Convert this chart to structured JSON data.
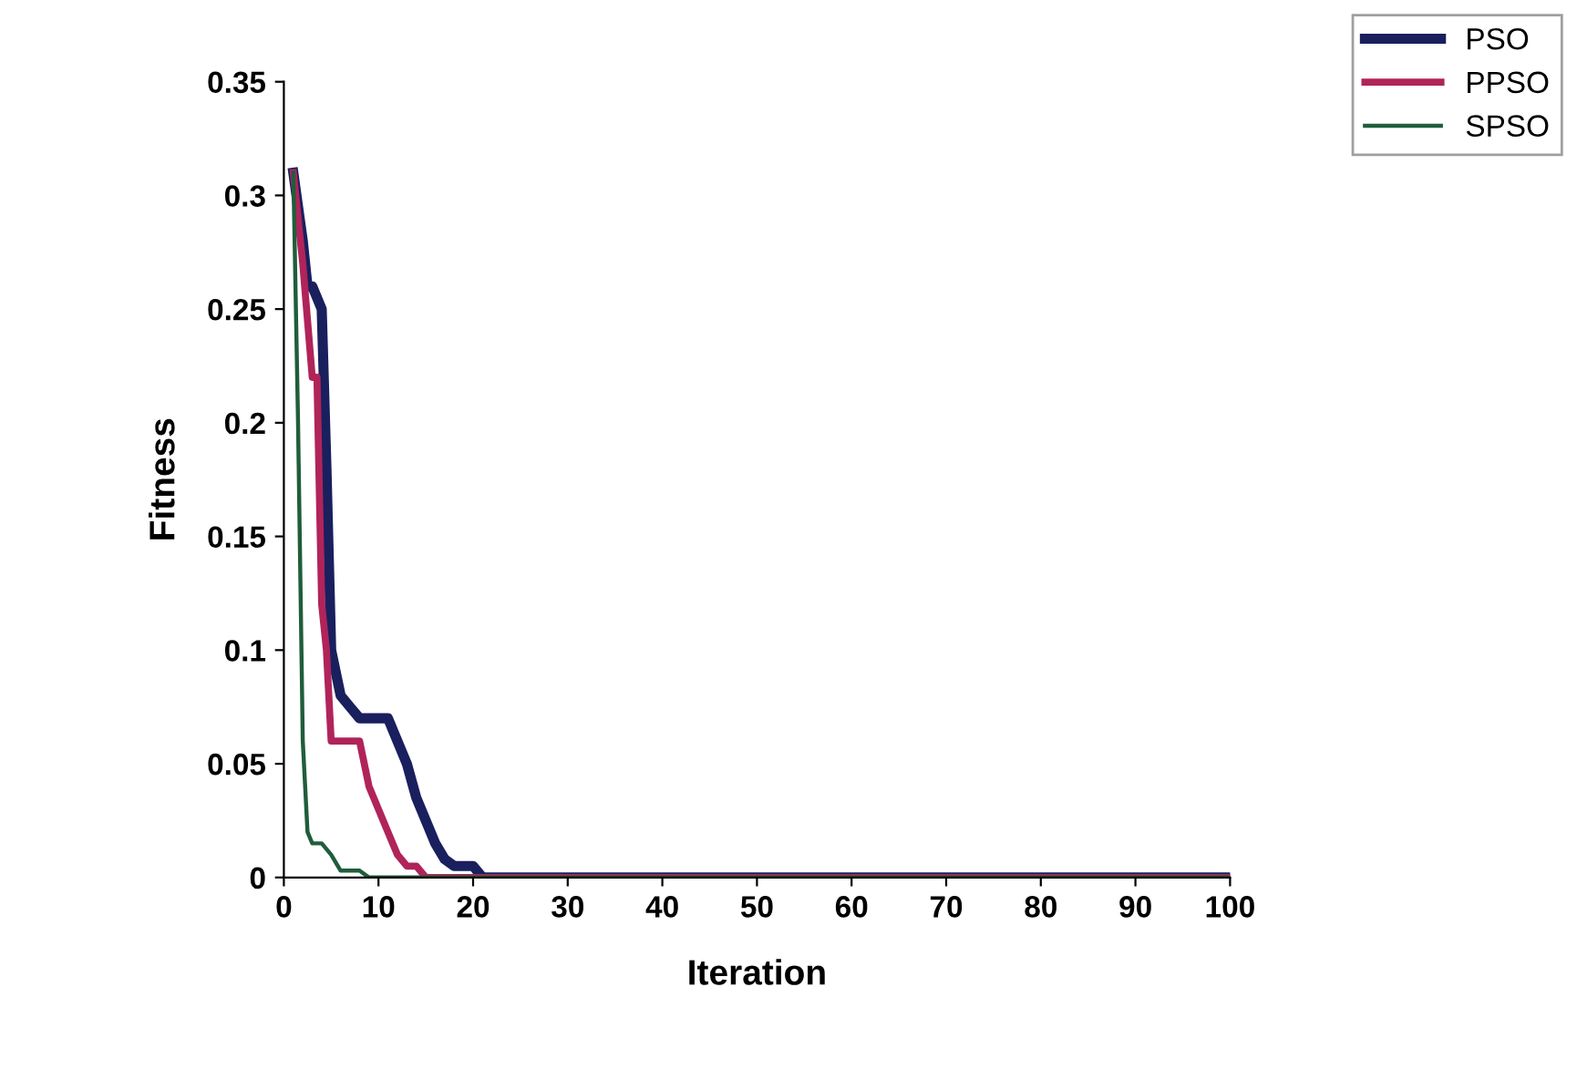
{
  "chart_data": {
    "type": "line",
    "xlabel": "Iteration",
    "ylabel": "Fitness",
    "xlim": [
      0,
      100
    ],
    "xticks": [
      0,
      10,
      20,
      30,
      40,
      50,
      60,
      70,
      80,
      90,
      100
    ],
    "ylim": [
      0,
      0.35
    ],
    "yticks": [
      0,
      0.05,
      0.1,
      0.15,
      0.2,
      0.25,
      0.3,
      0.35
    ],
    "grid": false,
    "legend": "top right",
    "marker": "none",
    "line_style": "solid",
    "series": [
      {
        "name": "PSO",
        "color": "#1a1f5e",
        "x": [
          1,
          2,
          2.5,
          3,
          4,
          4.5,
          5,
          6,
          7,
          8,
          11,
          12,
          13,
          14,
          15,
          16,
          17,
          18,
          20,
          21,
          100
        ],
        "values": [
          0.31,
          0.28,
          0.26,
          0.26,
          0.25,
          0.18,
          0.1,
          0.08,
          0.075,
          0.07,
          0.07,
          0.06,
          0.05,
          0.035,
          0.025,
          0.015,
          0.008,
          0.005,
          0.005,
          0,
          0
        ]
      },
      {
        "name": "PPSO",
        "color": "#b0245a",
        "x": [
          1,
          2,
          3,
          3.5,
          4,
          4.5,
          5,
          8,
          9,
          10,
          11,
          12,
          13,
          14,
          15,
          100
        ],
        "values": [
          0.31,
          0.27,
          0.22,
          0.22,
          0.12,
          0.1,
          0.06,
          0.06,
          0.04,
          0.03,
          0.02,
          0.01,
          0.005,
          0.005,
          0,
          0
        ]
      },
      {
        "name": "SPSO",
        "color": "#1f5e3a",
        "x": [
          1,
          1.5,
          2,
          2.5,
          3,
          4,
          5,
          6,
          8,
          9,
          100
        ],
        "values": [
          0.31,
          0.2,
          0.06,
          0.02,
          0.015,
          0.015,
          0.01,
          0.003,
          0.003,
          0,
          0
        ]
      }
    ]
  }
}
